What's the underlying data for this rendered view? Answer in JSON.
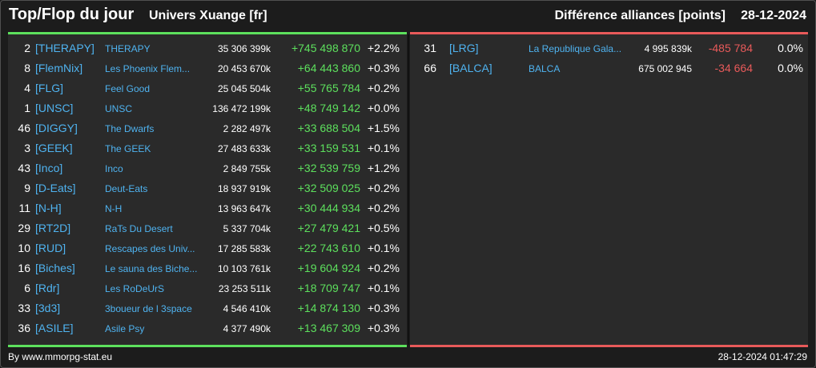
{
  "header": {
    "title": "Top/Flop du jour",
    "subtitle": "Univers Xuange [fr]",
    "right_title": "Différence alliances [points]",
    "date": "28-12-2024"
  },
  "colors": {
    "background": "#1c1c1c",
    "panel": "#2a2a2a",
    "positive": "#5de05d",
    "negative": "#e85a5a",
    "link": "#4fb3f0"
  },
  "top": [
    {
      "rank": "2",
      "tag": "[THERAPY]",
      "name": "THERAPY",
      "points": "35 306 399k",
      "diff": "+745 498 870",
      "pct": "+2.2%"
    },
    {
      "rank": "8",
      "tag": "[FlemNix]",
      "name": "Les Phoenix Flem...",
      "points": "20 453 670k",
      "diff": "+64 443 860",
      "pct": "+0.3%"
    },
    {
      "rank": "4",
      "tag": "[FLG]",
      "name": "Feel Good",
      "points": "25 045 504k",
      "diff": "+55 765 784",
      "pct": "+0.2%"
    },
    {
      "rank": "1",
      "tag": "[UNSC]",
      "name": "UNSC",
      "points": "136 472 199k",
      "diff": "+48 749 142",
      "pct": "+0.0%"
    },
    {
      "rank": "46",
      "tag": "[DIGGY]",
      "name": "The Dwarfs",
      "points": "2 282 497k",
      "diff": "+33 688 504",
      "pct": "+1.5%"
    },
    {
      "rank": "3",
      "tag": "[GEEK]",
      "name": "The GEEK",
      "points": "27 483 633k",
      "diff": "+33 159 531",
      "pct": "+0.1%"
    },
    {
      "rank": "43",
      "tag": "[Inco]",
      "name": "Inco",
      "points": "2 849 755k",
      "diff": "+32 539 759",
      "pct": "+1.2%"
    },
    {
      "rank": "9",
      "tag": "[D-Eats]",
      "name": "Deut-Eats",
      "points": "18 937 919k",
      "diff": "+32 509 025",
      "pct": "+0.2%"
    },
    {
      "rank": "11",
      "tag": "[N-H]",
      "name": "N-H",
      "points": "13 963 647k",
      "diff": "+30 444 934",
      "pct": "+0.2%"
    },
    {
      "rank": "29",
      "tag": "[RT2D]",
      "name": "RaTs Du Desert",
      "points": "5 337 704k",
      "diff": "+27 479 421",
      "pct": "+0.5%"
    },
    {
      "rank": "10",
      "tag": "[RUD]",
      "name": "Rescapes des Univ...",
      "points": "17 285 583k",
      "diff": "+22 743 610",
      "pct": "+0.1%"
    },
    {
      "rank": "16",
      "tag": "[Biches]",
      "name": "Le sauna des Biche...",
      "points": "10 103 761k",
      "diff": "+19 604 924",
      "pct": "+0.2%"
    },
    {
      "rank": "6",
      "tag": "[Rdr]",
      "name": "Les RoDeUrS",
      "points": "23 253 511k",
      "diff": "+18 709 747",
      "pct": "+0.1%"
    },
    {
      "rank": "33",
      "tag": "[3d3]",
      "name": "3boueur de l 3space",
      "points": "4 546 410k",
      "diff": "+14 874 130",
      "pct": "+0.3%"
    },
    {
      "rank": "36",
      "tag": "[ASILE]",
      "name": "Asile Psy",
      "points": "4 377 490k",
      "diff": "+13 467 309",
      "pct": "+0.3%"
    }
  ],
  "flop": [
    {
      "rank": "31",
      "tag": "[LRG]",
      "name": "La Republique Gala...",
      "points": "4 995 839k",
      "diff": "-485 784",
      "pct": "0.0%"
    },
    {
      "rank": "66",
      "tag": "[BALCA]",
      "name": "BALCA",
      "points": "675 002 945",
      "diff": "-34 664",
      "pct": "0.0%"
    }
  ],
  "footer": {
    "source": "By www.mmorpg-stat.eu",
    "timestamp": "28-12-2024 01:47:29"
  }
}
